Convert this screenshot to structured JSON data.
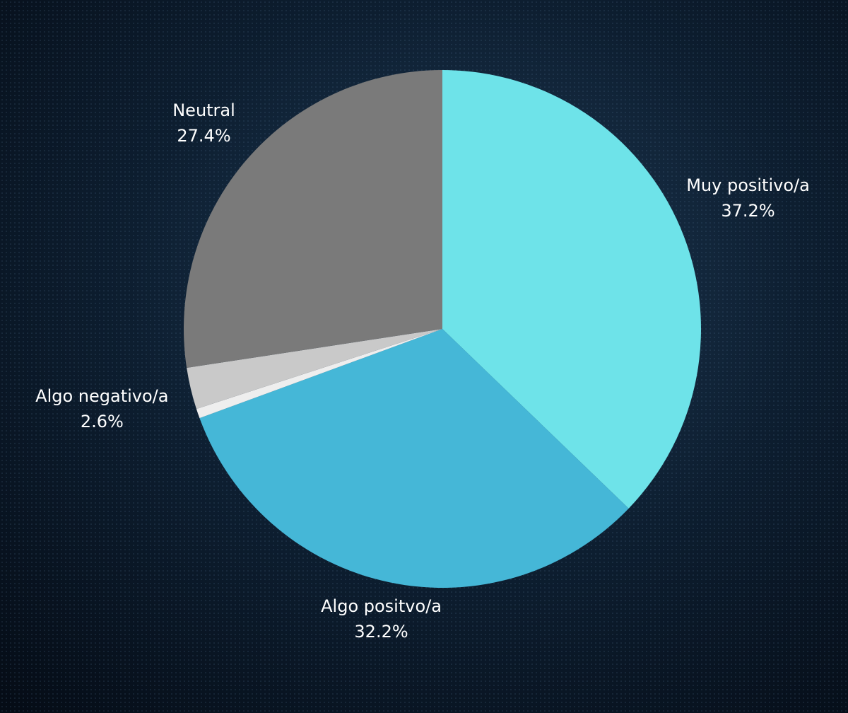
{
  "chart_data": {
    "type": "pie",
    "categories": [
      "Muy positivo/a",
      "Algo positvo/a",
      null,
      "Algo negativo/a",
      "Neutral"
    ],
    "values": [
      37.2,
      32.2,
      0.6,
      2.6,
      27.4
    ],
    "value_labels": [
      "37.2%",
      "32.2%",
      null,
      "2.6%",
      "27.4%"
    ],
    "colors": [
      "#6ee3e9",
      "#45b7d7",
      "#eeeeee",
      "#c9c9c9",
      "#7a7a7a"
    ],
    "start_angle": 0,
    "direction": "clockwise"
  }
}
